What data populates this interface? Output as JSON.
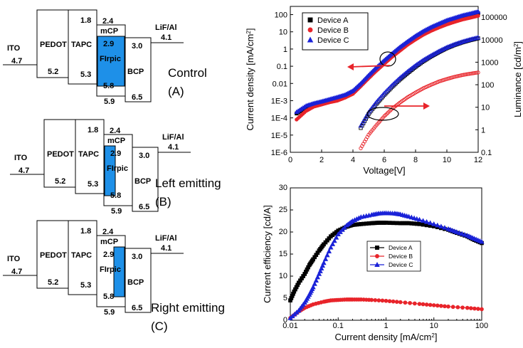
{
  "energy_diagrams": [
    {
      "caption": "Control",
      "letter": "(A)",
      "ito": {
        "label": "ITO",
        "value": "4.7"
      },
      "pedot": {
        "label": "PEDOT",
        "value": "5.2"
      },
      "tapc": {
        "label": "TAPC",
        "top": "1.8",
        "bottom": "5.3"
      },
      "mcp": {
        "label": "mCP",
        "top": "2.4",
        "bottom": "5.9"
      },
      "firpic": {
        "label": "FIrpic",
        "top": "2.9",
        "bottom": "5.8"
      },
      "bcp": {
        "label": "BCP",
        "top": "3.0",
        "bottom": "6.5"
      },
      "cathode": {
        "label": "LiF/Al",
        "value": "4.1"
      }
    },
    {
      "caption": "Left emitting",
      "letter": "(B)",
      "ito": {
        "label": "ITO",
        "value": "4.7"
      },
      "pedot": {
        "label": "PEDOT",
        "value": "5.2"
      },
      "tapc": {
        "label": "TAPC",
        "top": "1.8",
        "bottom": "5.3"
      },
      "mcp": {
        "label": "mCP",
        "top": "2.4",
        "bottom": "5.9"
      },
      "firpic": {
        "label": "FIrpic",
        "top": "2.9",
        "bottom": "5.8"
      },
      "bcp": {
        "label": "BCP",
        "top": "3.0",
        "bottom": "6.5"
      },
      "cathode": {
        "label": "LiF/Al",
        "value": "4.1"
      }
    },
    {
      "caption": "Right emitting",
      "letter": "(C)",
      "ito": {
        "label": "ITO",
        "value": "4.7"
      },
      "pedot": {
        "label": "PEDOT",
        "value": "5.2"
      },
      "tapc": {
        "label": "TAPC",
        "top": "1.8",
        "bottom": "5.3"
      },
      "mcp": {
        "label": "mCP",
        "top": "2.4",
        "bottom": "5.9"
      },
      "firpic": {
        "label": "FIrpic",
        "top": "2.9",
        "bottom": "5.8"
      },
      "bcp": {
        "label": "BCP",
        "top": "3.0",
        "bottom": "6.5"
      },
      "cathode": {
        "label": "LiF/Al",
        "value": "4.1"
      }
    }
  ],
  "colors": {
    "device_a": "#000000",
    "device_b": "#e8242a",
    "device_c": "#1a22d8",
    "firpic_fill": "#1e90e8",
    "arrow": "#e8242a"
  },
  "chart_data": [
    {
      "type": "scatter",
      "xlabel": "Voltage[V]",
      "ylabel": "Current density [mA/cm2]",
      "y2label": "Luminance [cd/m2]",
      "xlim": [
        0,
        12
      ],
      "ylim": [
        1e-06,
        300
      ],
      "y2lim": [
        0.1,
        300000
      ],
      "xticks": [
        "0",
        "2",
        "4",
        "6",
        "8",
        "10",
        "12"
      ],
      "yticks": [
        "1E-6",
        "1E-5",
        "1E-4",
        "1E-3",
        "0.01",
        "0.1",
        "1",
        "10",
        "100"
      ],
      "y2ticks": [
        "0.1",
        "1",
        "10",
        "100",
        "1000",
        "10000",
        "100000"
      ],
      "legend_position": "top-left",
      "series": [
        {
          "name": "Device A",
          "marker": "square",
          "kind": "current_density",
          "x": [
            0.4,
            1,
            1.5,
            2,
            2.5,
            3,
            3.5,
            4,
            4.5,
            5,
            5.5,
            6,
            6.5,
            7,
            7.5,
            8,
            8.5,
            9,
            9.5,
            10,
            10.5,
            11,
            11.5,
            12
          ],
          "y": [
            0.00018,
            0.0004,
            0.0006,
            0.0008,
            0.001,
            0.0013,
            0.0018,
            0.003,
            0.008,
            0.025,
            0.07,
            0.18,
            0.45,
            1.1,
            2.4,
            5,
            9.5,
            16,
            26,
            40,
            55,
            75,
            95,
            120
          ]
        },
        {
          "name": "Device B",
          "marker": "circle",
          "kind": "current_density",
          "x": [
            0.4,
            1,
            1.5,
            2,
            2.5,
            3,
            3.5,
            4,
            4.5,
            5,
            5.5,
            6,
            6.5,
            7,
            7.5,
            8,
            8.5,
            9,
            9.5,
            10,
            10.5,
            11,
            11.5,
            12
          ],
          "y": [
            8e-05,
            0.00025,
            0.00045,
            0.0006,
            0.0008,
            0.001,
            0.0015,
            0.0025,
            0.007,
            0.02,
            0.055,
            0.14,
            0.35,
            0.8,
            1.8,
            3.6,
            6.8,
            11.5,
            18,
            27,
            38,
            52,
            66,
            85
          ]
        },
        {
          "name": "Device C",
          "marker": "triangle",
          "kind": "current_density",
          "x": [
            0.4,
            1,
            1.5,
            2,
            2.5,
            3,
            3.5,
            4,
            4.5,
            5,
            5.5,
            6,
            6.5,
            7,
            7.5,
            8,
            8.5,
            9,
            9.5,
            10,
            10.5,
            11,
            11.5,
            12
          ],
          "y": [
            0.00022,
            0.0005,
            0.0007,
            0.0009,
            0.0012,
            0.0016,
            0.0022,
            0.0038,
            0.01,
            0.03,
            0.085,
            0.22,
            0.55,
            1.3,
            2.8,
            5.8,
            11,
            19,
            30,
            47,
            65,
            90,
            115,
            150
          ]
        },
        {
          "name": "Device A",
          "marker": "square-open",
          "kind": "luminance",
          "x": [
            4.5,
            5,
            5.5,
            6,
            6.5,
            7,
            7.5,
            8,
            8.5,
            9,
            9.5,
            10,
            10.5,
            11,
            11.5,
            12
          ],
          "y": [
            1.2,
            5,
            14,
            35,
            80,
            170,
            330,
            620,
            1100,
            1800,
            2800,
            4200,
            5800,
            7600,
            9500,
            11500
          ]
        },
        {
          "name": "Device B",
          "marker": "circle-open",
          "kind": "luminance",
          "x": [
            4.5,
            5,
            5.5,
            6,
            6.5,
            7,
            7.5,
            8,
            8.5,
            9,
            9.5,
            10,
            10.5,
            11,
            11.5,
            12
          ],
          "y": [
            0.15,
            0.6,
            1.6,
            4,
            8.5,
            16,
            28,
            45,
            70,
            100,
            140,
            180,
            225,
            270,
            310,
            350
          ]
        },
        {
          "name": "Device C",
          "marker": "triangle-open",
          "kind": "luminance",
          "x": [
            4.5,
            5,
            5.5,
            6,
            6.5,
            7,
            7.5,
            8,
            8.5,
            9,
            9.5,
            10,
            10.5,
            11,
            11.5,
            12
          ],
          "y": [
            1.5,
            6,
            17,
            42,
            95,
            200,
            390,
            720,
            1250,
            2000,
            3100,
            4600,
            6300,
            8200,
            10300,
            12500
          ]
        }
      ]
    },
    {
      "type": "line",
      "xlabel": "Current density [mA/cm2]",
      "ylabel": "Current efficiency [cd/A]",
      "xscale": "log",
      "xlim": [
        0.01,
        100
      ],
      "ylim": [
        0,
        30
      ],
      "xticks": [
        "0.01",
        "0.1",
        "1",
        "10",
        "100"
      ],
      "yticks": [
        "0",
        "5",
        "10",
        "15",
        "20",
        "25",
        "30"
      ],
      "legend_position": "center-right",
      "series": [
        {
          "name": "Device A",
          "marker": "square",
          "x": [
            0.01,
            0.012,
            0.015,
            0.02,
            0.025,
            0.03,
            0.04,
            0.05,
            0.07,
            0.1,
            0.15,
            0.2,
            0.3,
            0.5,
            0.7,
            1,
            2,
            3,
            5,
            10,
            20,
            30,
            50,
            70,
            100
          ],
          "y": [
            4.5,
            6.5,
            8.5,
            10.5,
            12.5,
            13.8,
            15.8,
            17.2,
            19,
            20.3,
            21.2,
            21.6,
            21.8,
            22,
            22.1,
            22.1,
            22,
            22,
            21.8,
            21.3,
            20.5,
            19.8,
            19,
            18.2,
            17.5
          ]
        },
        {
          "name": "Device B",
          "marker": "circle",
          "x": [
            0.01,
            0.015,
            0.02,
            0.03,
            0.05,
            0.07,
            0.1,
            0.15,
            0.2,
            0.3,
            0.5,
            1,
            2,
            5,
            10,
            20,
            50,
            100
          ],
          "y": [
            0.5,
            2,
            2.8,
            3.6,
            4.2,
            4.5,
            4.6,
            4.7,
            4.7,
            4.7,
            4.6,
            4.4,
            4.1,
            3.7,
            3.4,
            3.1,
            2.8,
            2.5
          ]
        },
        {
          "name": "Device C",
          "marker": "triangle",
          "x": [
            0.01,
            0.015,
            0.02,
            0.025,
            0.03,
            0.04,
            0.05,
            0.07,
            0.1,
            0.15,
            0.2,
            0.3,
            0.5,
            0.7,
            1,
            1.5,
            2,
            3,
            5,
            10,
            20,
            30,
            50,
            70,
            100
          ],
          "y": [
            0.5,
            2.2,
            4,
            5.8,
            7.5,
            10.5,
            13,
            16.5,
            19.5,
            21.5,
            22.5,
            23.4,
            23.9,
            24.2,
            24.3,
            24.2,
            24,
            23.5,
            22.8,
            21.8,
            20.7,
            20,
            19.2,
            18.5,
            17.8
          ]
        }
      ]
    }
  ]
}
